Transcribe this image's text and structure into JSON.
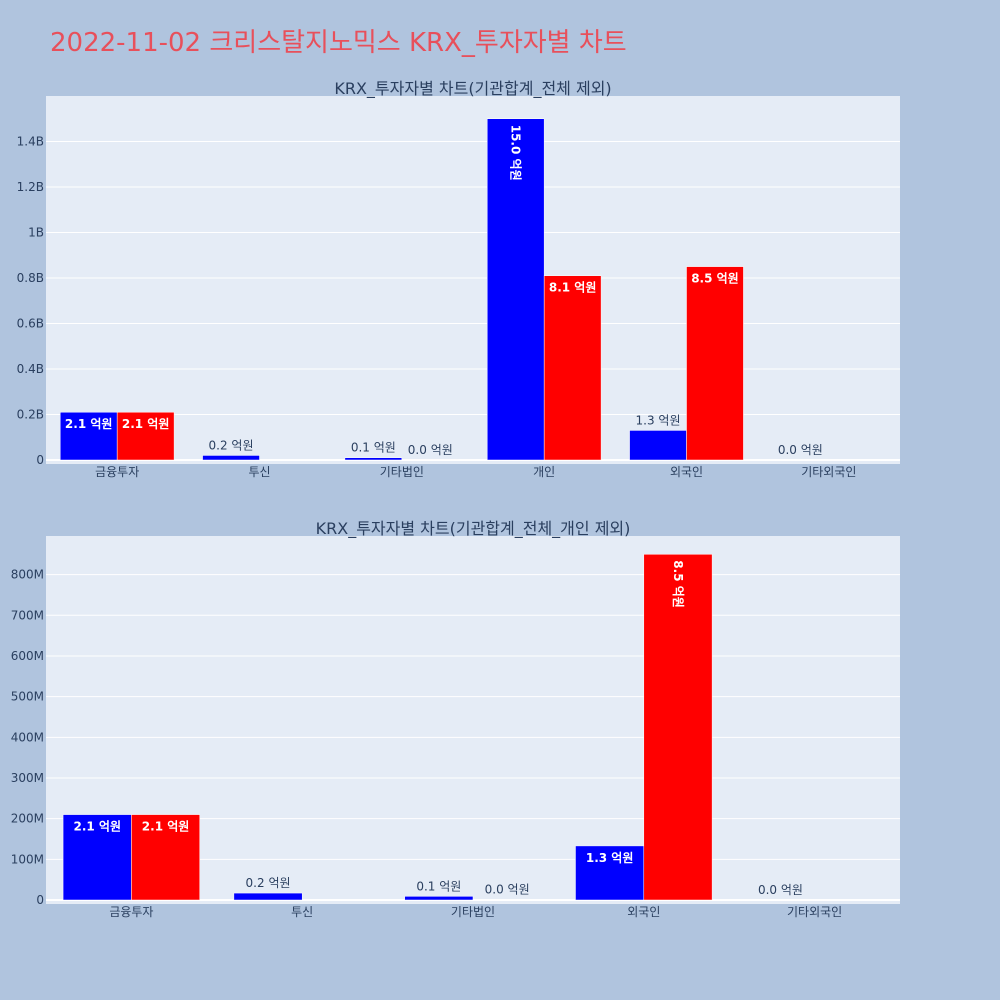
{
  "page_title": "2022-11-02 크리스탈지노믹스 KRX_투자자별 차트",
  "colors": {
    "series1": "#0000ff",
    "series2": "#ff0000",
    "plot_bg": "#e5ecf6",
    "page_bg": "#b0c4de"
  },
  "chart_data": [
    {
      "type": "bar",
      "title": "KRX_투자자별 차트(기관합계_전체 제외)",
      "categories": [
        "금융투자",
        "투신",
        "기타법인",
        "개인",
        "외국인",
        "기타외국인"
      ],
      "ylim": [
        0,
        1600000000
      ],
      "y_ticks": [
        0,
        200000000,
        400000000,
        600000000,
        800000000,
        1000000000,
        1200000000,
        1400000000
      ],
      "y_tick_labels": [
        "0",
        "0.2B",
        "0.4B",
        "0.6B",
        "0.8B",
        "1B",
        "1.2B",
        "1.4B"
      ],
      "grid": true,
      "series": [
        {
          "color": "#0000ff",
          "values": [
            210000000,
            20000000,
            10000000,
            1500000000,
            130000000,
            0
          ],
          "labels": [
            "2.1 억원",
            "0.2 억원",
            "0.1 억원",
            "15.0 억원",
            "1.3 억원",
            "0.0 억원"
          ]
        },
        {
          "color": "#ff0000",
          "values": [
            210000000,
            0,
            1000000,
            810000000,
            850000000,
            0
          ],
          "labels": [
            "2.1 억원",
            "",
            "0.0 억원",
            "8.1 억원",
            "8.5 억원",
            ""
          ]
        }
      ]
    },
    {
      "type": "bar",
      "title": "KRX_투자자별 차트(기관합계_전체_개인 제외)",
      "categories": [
        "금융투자",
        "투신",
        "기타법인",
        "외국인",
        "기타외국인"
      ],
      "ylim": [
        0,
        895000000
      ],
      "y_ticks": [
        0,
        100000000,
        200000000,
        300000000,
        400000000,
        500000000,
        600000000,
        700000000,
        800000000
      ],
      "y_tick_labels": [
        "0",
        "100M",
        "200M",
        "300M",
        "400M",
        "500M",
        "600M",
        "700M",
        "800M"
      ],
      "grid": true,
      "series": [
        {
          "color": "#0000ff",
          "values": [
            210000000,
            17000000,
            9000000,
            133000000,
            0
          ],
          "labels": [
            "2.1 억원",
            "0.2 억원",
            "0.1 억원",
            "1.3 억원",
            "0.0 억원"
          ]
        },
        {
          "color": "#ff0000",
          "values": [
            210000000,
            0,
            1000000,
            850000000,
            0
          ],
          "labels": [
            "2.1 억원",
            "",
            "0.0 억원",
            "8.5 억원",
            ""
          ]
        }
      ]
    }
  ]
}
